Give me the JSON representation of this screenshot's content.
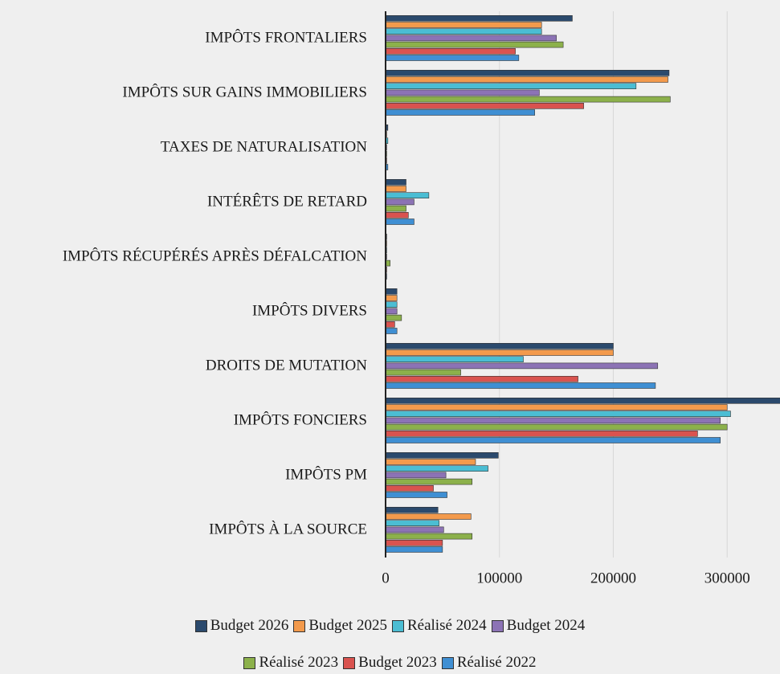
{
  "chart_data": {
    "type": "hbar",
    "categories": [
      "IMPÔTS FRONTALIERS",
      "IMPÔTS SUR GAINS IMMOBILIERS",
      "TAXES DE NATURALISATION",
      "INTÉRÊTS DE RETARD",
      "IMPÔTS RÉCUPÉRÉS APRÈS DÉFALCATION",
      "IMPÔTS DIVERS",
      "DROITS DE MUTATION",
      "IMPÔTS FONCIERS",
      "IMPÔTS PM",
      "IMPÔTS À LA SOURCE"
    ],
    "series": [
      {
        "name": "Budget 2026",
        "color": "#2b4a6d",
        "values": [
          164000,
          249000,
          2000,
          18000,
          1000,
          10000,
          200000,
          360000,
          99000,
          46000
        ]
      },
      {
        "name": "Budget 2025",
        "color": "#f39a4c",
        "values": [
          137000,
          248000,
          1000,
          18000,
          1000,
          10000,
          200000,
          300000,
          79000,
          75000
        ]
      },
      {
        "name": "Réalisé 2024",
        "color": "#4bbdd3",
        "values": [
          137000,
          220000,
          2000,
          38000,
          1000,
          10000,
          121000,
          303000,
          90000,
          47000
        ]
      },
      {
        "name": "Budget 2024",
        "color": "#8c73b5",
        "values": [
          150000,
          135000,
          1000,
          25000,
          1000,
          10000,
          239000,
          294000,
          53000,
          51000
        ]
      },
      {
        "name": "Réalisé 2023",
        "color": "#8cb14b",
        "values": [
          156000,
          250000,
          1000,
          18000,
          4000,
          14000,
          66000,
          300000,
          76000,
          76000
        ]
      },
      {
        "name": "Budget 2023",
        "color": "#d9534f",
        "values": [
          114000,
          174000,
          1000,
          20000,
          1000,
          8000,
          169000,
          274000,
          42000,
          50000
        ]
      },
      {
        "name": "Réalisé 2022",
        "color": "#3f8fd3",
        "values": [
          117000,
          131000,
          2000,
          25000,
          1000,
          10000,
          237000,
          294000,
          54000,
          50000
        ]
      }
    ],
    "xlim": [
      0,
      345000
    ],
    "xticks": [
      0,
      100000,
      200000,
      300000
    ],
    "grid": true
  }
}
